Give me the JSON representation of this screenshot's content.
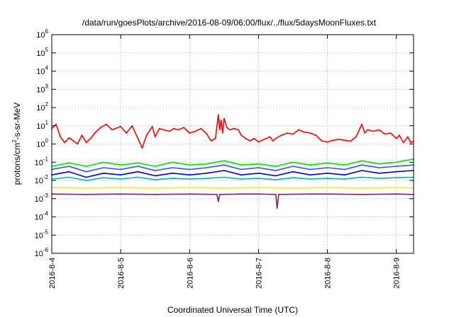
{
  "chart_data": {
    "type": "line",
    "title": "/data/run/goesPlots/archive/2016-08-09/06:00/flux/../flux/5daysMoonFluxes.txt",
    "xlabel": "Coordinated Universal Time (UTC)",
    "ylabel": "protons/cm2-s-sr-MeV",
    "ylabel_parts": {
      "a": "protons/cm",
      "sup": "2",
      "b": "-s-sr-MeV"
    },
    "y_scale": "log",
    "ylim": [
      1e-06,
      1000000.0
    ],
    "y_ticks": [
      {
        "exp": -6,
        "base": "10",
        "sup": "-6"
      },
      {
        "exp": -5,
        "base": "10",
        "sup": "-5"
      },
      {
        "exp": -4,
        "base": "10",
        "sup": "-4"
      },
      {
        "exp": -3,
        "base": "10",
        "sup": "-3"
      },
      {
        "exp": -2,
        "base": "10",
        "sup": "-2"
      },
      {
        "exp": -1,
        "base": "10",
        "sup": "-1"
      },
      {
        "exp": 0,
        "base": "10",
        "sup": "0"
      },
      {
        "exp": 1,
        "base": "10",
        "sup": "1"
      },
      {
        "exp": 2,
        "base": "10",
        "sup": "2"
      },
      {
        "exp": 3,
        "base": "10",
        "sup": "3"
      },
      {
        "exp": 4,
        "base": "10",
        "sup": "4"
      },
      {
        "exp": 5,
        "base": "10",
        "sup": "5"
      },
      {
        "exp": 6,
        "base": "10",
        "sup": "6"
      }
    ],
    "xlim": [
      "2016-08-04T00:00",
      "2016-08-09T06:00"
    ],
    "x_ticks": [
      "2016-8-4",
      "2016-8-5",
      "2016-8-6",
      "2016-8-7",
      "2016-8-8",
      "2016-8-9"
    ],
    "x_tick_dates": [
      "2016-08-04T00:00",
      "2016-08-05T00:00",
      "2016-08-06T00:00",
      "2016-08-07T00:00",
      "2016-08-08T00:00",
      "2016-08-09T00:00"
    ],
    "grid": true,
    "legend": "none",
    "series": [
      {
        "color": "#ff0000",
        "values": [
          {
            "x": "2016-08-04T00:00",
            "y": 7
          },
          {
            "x": "2016-08-04T01:30",
            "y": 12
          },
          {
            "x": "2016-08-04T03:00",
            "y": 2.5
          },
          {
            "x": "2016-08-04T04:30",
            "y": 1.2
          },
          {
            "x": "2016-08-04T06:00",
            "y": 2.2
          },
          {
            "x": "2016-08-04T07:30",
            "y": 1.5
          },
          {
            "x": "2016-08-04T09:00",
            "y": 1
          },
          {
            "x": "2016-08-04T10:30",
            "y": 3
          },
          {
            "x": "2016-08-04T12:00",
            "y": 1.2
          },
          {
            "x": "2016-08-04T13:30",
            "y": 2
          },
          {
            "x": "2016-08-04T15:00",
            "y": 4
          },
          {
            "x": "2016-08-04T17:00",
            "y": 8
          },
          {
            "x": "2016-08-04T19:00",
            "y": 12
          },
          {
            "x": "2016-08-04T21:00",
            "y": 6
          },
          {
            "x": "2016-08-05T00:00",
            "y": 9
          },
          {
            "x": "2016-08-05T02:00",
            "y": 4
          },
          {
            "x": "2016-08-05T04:00",
            "y": 10
          },
          {
            "x": "2016-08-05T06:00",
            "y": 2
          },
          {
            "x": "2016-08-05T07:30",
            "y": 0.6
          },
          {
            "x": "2016-08-05T09:00",
            "y": 3
          },
          {
            "x": "2016-08-05T11:00",
            "y": 9
          },
          {
            "x": "2016-08-05T12:00",
            "y": 2.5
          },
          {
            "x": "2016-08-05T13:30",
            "y": 7
          },
          {
            "x": "2016-08-05T15:00",
            "y": 6
          },
          {
            "x": "2016-08-05T17:00",
            "y": 5
          },
          {
            "x": "2016-08-05T18:30",
            "y": 7
          },
          {
            "x": "2016-08-05T20:00",
            "y": 6
          },
          {
            "x": "2016-08-05T22:00",
            "y": 8
          },
          {
            "x": "2016-08-06T00:00",
            "y": 4
          },
          {
            "x": "2016-08-06T02:00",
            "y": 5
          },
          {
            "x": "2016-08-06T04:00",
            "y": 7
          },
          {
            "x": "2016-08-06T06:00",
            "y": 3.5
          },
          {
            "x": "2016-08-06T07:30",
            "y": 1.5
          },
          {
            "x": "2016-08-06T09:00",
            "y": 2
          },
          {
            "x": "2016-08-06T10:00",
            "y": 40
          },
          {
            "x": "2016-08-06T10:30",
            "y": 6
          },
          {
            "x": "2016-08-06T11:00",
            "y": 20
          },
          {
            "x": "2016-08-06T11:30",
            "y": 4
          },
          {
            "x": "2016-08-06T12:00",
            "y": 25
          },
          {
            "x": "2016-08-06T13:00",
            "y": 8
          },
          {
            "x": "2016-08-06T14:00",
            "y": 6
          },
          {
            "x": "2016-08-06T15:30",
            "y": 7
          },
          {
            "x": "2016-08-06T17:00",
            "y": 6
          },
          {
            "x": "2016-08-06T18:00",
            "y": 3
          },
          {
            "x": "2016-08-06T19:30",
            "y": 2
          },
          {
            "x": "2016-08-06T21:00",
            "y": 1.5
          },
          {
            "x": "2016-08-06T22:30",
            "y": 2
          },
          {
            "x": "2016-08-07T00:00",
            "y": 1.3
          },
          {
            "x": "2016-08-07T02:00",
            "y": 1.8
          },
          {
            "x": "2016-08-07T04:00",
            "y": 2.5
          },
          {
            "x": "2016-08-07T05:00",
            "y": 1.5
          },
          {
            "x": "2016-08-07T06:00",
            "y": 2
          },
          {
            "x": "2016-08-07T08:00",
            "y": 3
          },
          {
            "x": "2016-08-07T10:00",
            "y": 4
          },
          {
            "x": "2016-08-07T12:00",
            "y": 3.5
          },
          {
            "x": "2016-08-07T14:00",
            "y": 6
          },
          {
            "x": "2016-08-07T16:00",
            "y": 4.5
          },
          {
            "x": "2016-08-07T18:00",
            "y": 4
          },
          {
            "x": "2016-08-07T20:00",
            "y": 3
          },
          {
            "x": "2016-08-07T22:00",
            "y": 1.5
          },
          {
            "x": "2016-08-08T00:00",
            "y": 1.3
          },
          {
            "x": "2016-08-08T02:00",
            "y": 1.6
          },
          {
            "x": "2016-08-08T04:00",
            "y": 1.8
          },
          {
            "x": "2016-08-08T06:00",
            "y": 1.6
          },
          {
            "x": "2016-08-08T08:00",
            "y": 1.4
          },
          {
            "x": "2016-08-08T10:00",
            "y": 2.5
          },
          {
            "x": "2016-08-08T12:00",
            "y": 12
          },
          {
            "x": "2016-08-08T13:00",
            "y": 4
          },
          {
            "x": "2016-08-08T14:00",
            "y": 6
          },
          {
            "x": "2016-08-08T16:00",
            "y": 5
          },
          {
            "x": "2016-08-08T18:00",
            "y": 6
          },
          {
            "x": "2016-08-08T20:00",
            "y": 3.5
          },
          {
            "x": "2016-08-08T22:00",
            "y": 4
          },
          {
            "x": "2016-08-09T00:00",
            "y": 2
          },
          {
            "x": "2016-08-09T01:00",
            "y": 3
          },
          {
            "x": "2016-08-09T02:30",
            "y": 1.2
          },
          {
            "x": "2016-08-09T04:00",
            "y": 2.5
          },
          {
            "x": "2016-08-09T05:00",
            "y": 1.2
          },
          {
            "x": "2016-08-09T06:00",
            "y": 1.4
          }
        ]
      },
      {
        "color": "#00e000",
        "values": [
          {
            "x": "2016-08-04T00:00",
            "y": 0.06
          },
          {
            "x": "2016-08-04T06:00",
            "y": 0.09
          },
          {
            "x": "2016-08-04T12:00",
            "y": 0.06
          },
          {
            "x": "2016-08-04T18:00",
            "y": 0.1
          },
          {
            "x": "2016-08-05T00:00",
            "y": 0.07
          },
          {
            "x": "2016-08-05T06:00",
            "y": 0.09
          },
          {
            "x": "2016-08-05T12:00",
            "y": 0.06
          },
          {
            "x": "2016-08-05T18:00",
            "y": 0.1
          },
          {
            "x": "2016-08-06T00:00",
            "y": 0.07
          },
          {
            "x": "2016-08-06T06:00",
            "y": 0.08
          },
          {
            "x": "2016-08-06T12:00",
            "y": 0.12
          },
          {
            "x": "2016-08-06T18:00",
            "y": 0.07
          },
          {
            "x": "2016-08-07T00:00",
            "y": 0.08
          },
          {
            "x": "2016-08-07T06:00",
            "y": 0.06
          },
          {
            "x": "2016-08-07T12:00",
            "y": 0.1
          },
          {
            "x": "2016-08-07T18:00",
            "y": 0.07
          },
          {
            "x": "2016-08-08T00:00",
            "y": 0.09
          },
          {
            "x": "2016-08-08T06:00",
            "y": 0.07
          },
          {
            "x": "2016-08-08T12:00",
            "y": 0.12
          },
          {
            "x": "2016-08-08T18:00",
            "y": 0.08
          },
          {
            "x": "2016-08-09T00:00",
            "y": 0.1
          },
          {
            "x": "2016-08-09T06:00",
            "y": 0.15
          }
        ]
      },
      {
        "color": "#3050ff",
        "values": [
          {
            "x": "2016-08-04T00:00",
            "y": 0.04
          },
          {
            "x": "2016-08-04T06:00",
            "y": 0.06
          },
          {
            "x": "2016-08-04T12:00",
            "y": 0.03
          },
          {
            "x": "2016-08-04T18:00",
            "y": 0.05
          },
          {
            "x": "2016-08-05T00:00",
            "y": 0.04
          },
          {
            "x": "2016-08-05T06:00",
            "y": 0.06
          },
          {
            "x": "2016-08-05T12:00",
            "y": 0.035
          },
          {
            "x": "2016-08-05T18:00",
            "y": 0.05
          },
          {
            "x": "2016-08-06T00:00",
            "y": 0.04
          },
          {
            "x": "2016-08-06T06:00",
            "y": 0.05
          },
          {
            "x": "2016-08-06T12:00",
            "y": 0.07
          },
          {
            "x": "2016-08-06T18:00",
            "y": 0.04
          },
          {
            "x": "2016-08-07T00:00",
            "y": 0.05
          },
          {
            "x": "2016-08-07T06:00",
            "y": 0.035
          },
          {
            "x": "2016-08-07T12:00",
            "y": 0.06
          },
          {
            "x": "2016-08-07T18:00",
            "y": 0.04
          },
          {
            "x": "2016-08-08T00:00",
            "y": 0.05
          },
          {
            "x": "2016-08-08T06:00",
            "y": 0.04
          },
          {
            "x": "2016-08-08T12:00",
            "y": 0.07
          },
          {
            "x": "2016-08-08T18:00",
            "y": 0.05
          },
          {
            "x": "2016-08-09T00:00",
            "y": 0.06
          },
          {
            "x": "2016-08-09T06:00",
            "y": 0.07
          }
        ]
      },
      {
        "color": "#0000c8",
        "values": [
          {
            "x": "2016-08-04T00:00",
            "y": 0.02
          },
          {
            "x": "2016-08-04T06:00",
            "y": 0.03
          },
          {
            "x": "2016-08-04T12:00",
            "y": 0.015
          },
          {
            "x": "2016-08-04T18:00",
            "y": 0.025
          },
          {
            "x": "2016-08-05T00:00",
            "y": 0.02
          },
          {
            "x": "2016-08-05T06:00",
            "y": 0.03
          },
          {
            "x": "2016-08-05T12:00",
            "y": 0.018
          },
          {
            "x": "2016-08-05T18:00",
            "y": 0.025
          },
          {
            "x": "2016-08-06T00:00",
            "y": 0.02
          },
          {
            "x": "2016-08-06T06:00",
            "y": 0.025
          },
          {
            "x": "2016-08-06T12:00",
            "y": 0.035
          },
          {
            "x": "2016-08-06T18:00",
            "y": 0.02
          },
          {
            "x": "2016-08-07T00:00",
            "y": 0.025
          },
          {
            "x": "2016-08-07T06:00",
            "y": 0.018
          },
          {
            "x": "2016-08-07T12:00",
            "y": 0.03
          },
          {
            "x": "2016-08-07T18:00",
            "y": 0.02
          },
          {
            "x": "2016-08-08T00:00",
            "y": 0.025
          },
          {
            "x": "2016-08-08T06:00",
            "y": 0.02
          },
          {
            "x": "2016-08-08T12:00",
            "y": 0.035
          },
          {
            "x": "2016-08-08T18:00",
            "y": 0.025
          },
          {
            "x": "2016-08-09T00:00",
            "y": 0.03
          },
          {
            "x": "2016-08-09T06:00",
            "y": 0.035
          }
        ]
      },
      {
        "color": "#00b0b0",
        "values": [
          {
            "x": "2016-08-04T00:00",
            "y": 0.012
          },
          {
            "x": "2016-08-04T06:00",
            "y": 0.015
          },
          {
            "x": "2016-08-04T12:00",
            "y": 0.01
          },
          {
            "x": "2016-08-04T18:00",
            "y": 0.014
          },
          {
            "x": "2016-08-05T00:00",
            "y": 0.012
          },
          {
            "x": "2016-08-05T06:00",
            "y": 0.015
          },
          {
            "x": "2016-08-05T12:00",
            "y": 0.011
          },
          {
            "x": "2016-08-05T18:00",
            "y": 0.013
          },
          {
            "x": "2016-08-06T00:00",
            "y": 0.012
          },
          {
            "x": "2016-08-06T06:00",
            "y": 0.013
          },
          {
            "x": "2016-08-06T12:00",
            "y": 0.015
          },
          {
            "x": "2016-08-06T18:00",
            "y": 0.012
          },
          {
            "x": "2016-08-07T00:00",
            "y": 0.013
          },
          {
            "x": "2016-08-07T06:00",
            "y": 0.011
          },
          {
            "x": "2016-08-07T12:00",
            "y": 0.014
          },
          {
            "x": "2016-08-07T18:00",
            "y": 0.012
          },
          {
            "x": "2016-08-08T00:00",
            "y": 0.013
          },
          {
            "x": "2016-08-08T06:00",
            "y": 0.012
          },
          {
            "x": "2016-08-08T12:00",
            "y": 0.015
          },
          {
            "x": "2016-08-08T18:00",
            "y": 0.013
          },
          {
            "x": "2016-08-09T00:00",
            "y": 0.014
          },
          {
            "x": "2016-08-09T06:00",
            "y": 0.015
          }
        ]
      },
      {
        "color": "#f0f000",
        "values": [
          {
            "x": "2016-08-04T00:00",
            "y": 0.004
          },
          {
            "x": "2016-08-04T12:00",
            "y": 0.0038
          },
          {
            "x": "2016-08-05T00:00",
            "y": 0.004
          },
          {
            "x": "2016-08-05T12:00",
            "y": 0.0038
          },
          {
            "x": "2016-08-06T00:00",
            "y": 0.004
          },
          {
            "x": "2016-08-06T12:00",
            "y": 0.0038
          },
          {
            "x": "2016-08-07T00:00",
            "y": 0.004
          },
          {
            "x": "2016-08-07T12:00",
            "y": 0.0038
          },
          {
            "x": "2016-08-08T00:00",
            "y": 0.004
          },
          {
            "x": "2016-08-08T12:00",
            "y": 0.0038
          },
          {
            "x": "2016-08-09T00:00",
            "y": 0.004
          },
          {
            "x": "2016-08-09T06:00",
            "y": 0.0039
          }
        ]
      },
      {
        "color": "#80206a",
        "values": [
          {
            "x": "2016-08-04T00:00",
            "y": 0.0018
          },
          {
            "x": "2016-08-04T12:00",
            "y": 0.0017
          },
          {
            "x": "2016-08-05T00:00",
            "y": 0.0018
          },
          {
            "x": "2016-08-05T12:00",
            "y": 0.0017
          },
          {
            "x": "2016-08-06T00:00",
            "y": 0.0018
          },
          {
            "x": "2016-08-06T09:30",
            "y": 0.0017
          },
          {
            "x": "2016-08-06T10:00",
            "y": 0.0007
          },
          {
            "x": "2016-08-06T10:30",
            "y": 0.0017
          },
          {
            "x": "2016-08-06T18:00",
            "y": 0.0018
          },
          {
            "x": "2016-08-07T00:00",
            "y": 0.0018
          },
          {
            "x": "2016-08-07T06:00",
            "y": 0.0017
          },
          {
            "x": "2016-08-07T06:30",
            "y": 0.0003
          },
          {
            "x": "2016-08-07T07:00",
            "y": 0.0017
          },
          {
            "x": "2016-08-07T18:00",
            "y": 0.0018
          },
          {
            "x": "2016-08-08T00:00",
            "y": 0.0018
          },
          {
            "x": "2016-08-08T12:00",
            "y": 0.0017
          },
          {
            "x": "2016-08-09T00:00",
            "y": 0.0018
          },
          {
            "x": "2016-08-09T06:00",
            "y": 0.0017
          }
        ]
      }
    ]
  }
}
